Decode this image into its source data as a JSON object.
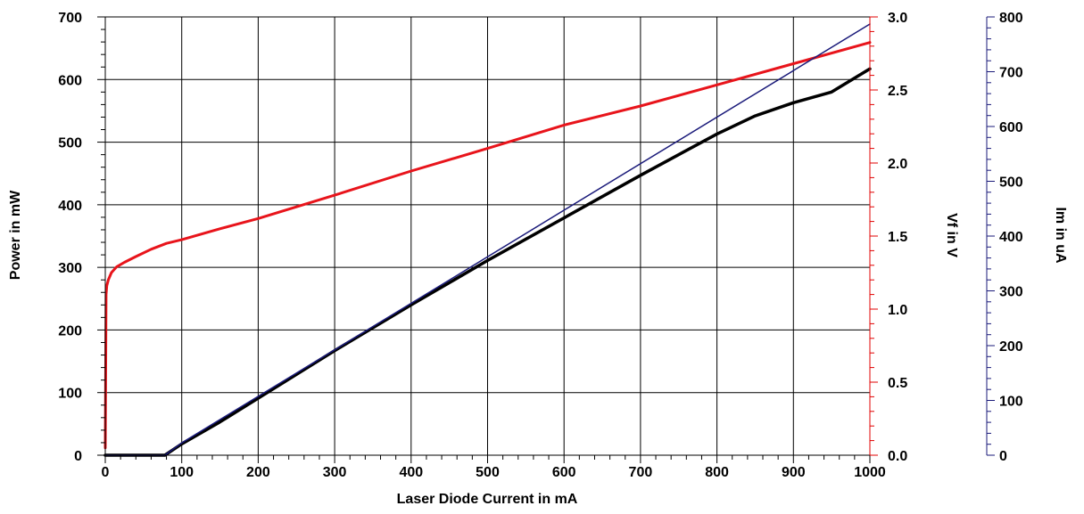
{
  "chart_data": {
    "type": "line",
    "xlabel": "Laser Diode Current in mA",
    "x_range": [
      0,
      1000
    ],
    "x_ticks": [
      0,
      100,
      200,
      300,
      400,
      500,
      600,
      700,
      800,
      900,
      1000
    ],
    "grid": true,
    "axes": {
      "power": {
        "label": "Power  in mW",
        "position": "left",
        "range": [
          0,
          700
        ],
        "ticks": [
          0,
          100,
          200,
          300,
          400,
          500,
          600,
          700
        ],
        "color": "#000000"
      },
      "vf": {
        "label": "Vf in V",
        "position": "right",
        "range": [
          0,
          3.0
        ],
        "ticks": [
          "0.0",
          "0.5",
          "1.0",
          "1.5",
          "2.0",
          "2.5",
          "3.0"
        ],
        "color": "#e00000"
      },
      "im": {
        "label": "Im in uA",
        "position": "far-right",
        "range": [
          0,
          800
        ],
        "ticks": [
          0,
          100,
          200,
          300,
          400,
          500,
          600,
          700,
          800
        ],
        "color": "#1a1a7a"
      }
    },
    "series": [
      {
        "axis": "vf",
        "color": "#e8141b",
        "x": [
          0,
          1,
          2,
          4,
          8,
          15,
          25,
          40,
          60,
          80,
          100,
          150,
          200,
          300,
          400,
          500,
          600,
          700,
          800,
          900,
          1000
        ],
        "y": [
          0.05,
          1.1,
          1.16,
          1.2,
          1.25,
          1.29,
          1.32,
          1.36,
          1.41,
          1.45,
          1.475,
          1.55,
          1.62,
          1.78,
          1.945,
          2.1,
          2.26,
          2.39,
          2.535,
          2.68,
          2.825
        ]
      },
      {
        "axis": "power",
        "color": "#000000",
        "x": [
          0,
          78,
          100,
          150,
          200,
          300,
          400,
          500,
          600,
          700,
          800,
          850,
          900,
          950,
          1000
        ],
        "y": [
          0,
          0,
          18,
          53,
          91,
          167,
          240,
          311,
          379,
          447,
          513,
          542,
          563,
          580,
          617
        ]
      },
      {
        "axis": "im",
        "color": "#1a1a7a",
        "x": [
          0,
          78,
          100,
          1000
        ],
        "y": [
          0,
          0,
          22.5,
          787
        ]
      }
    ]
  }
}
